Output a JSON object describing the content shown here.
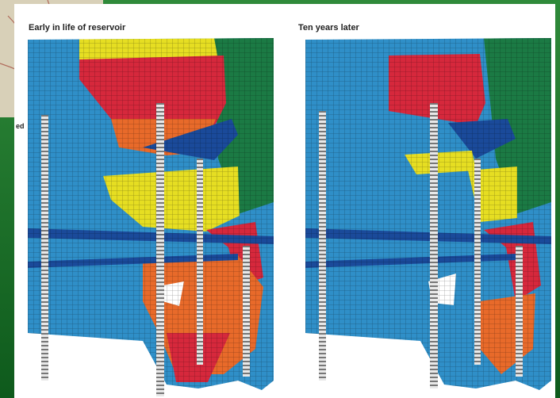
{
  "panels": [
    {
      "title": "Early in life of reservoir"
    },
    {
      "title": "Ten years later"
    }
  ],
  "side_text": "ed"
}
